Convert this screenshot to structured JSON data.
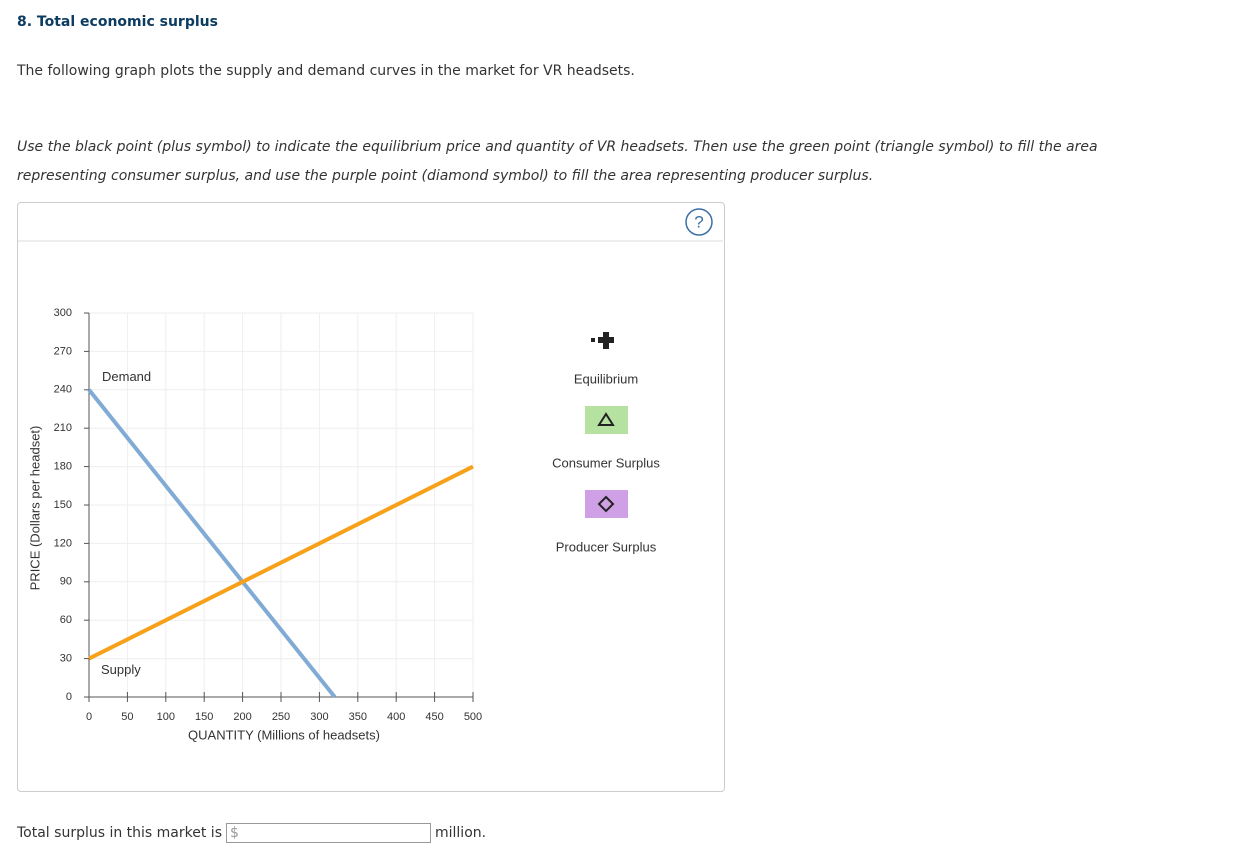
{
  "header": {
    "title": "8. Total economic surplus"
  },
  "intro": "The following graph plots the supply and demand curves in the market for VR headsets.",
  "instructions": "Use the black point (plus symbol) to indicate the equilibrium price and quantity of VR headsets. Then use the green point (triangle symbol) to fill the area representing consumer surplus, and use the purple point (diamond symbol) to fill the area representing producer surplus.",
  "chart_data": {
    "type": "line",
    "x_label": "QUANTITY (Millions of headsets)",
    "y_label": "PRICE (Dollars per headset)",
    "series": [
      {
        "name": "Demand",
        "color": "#80abd4",
        "x": [
          0,
          320
        ],
        "values": [
          240,
          0
        ]
      },
      {
        "name": "Supply",
        "color": "#f7a11a",
        "x": [
          0,
          500
        ],
        "values": [
          30,
          180
        ]
      }
    ],
    "xlim": [
      0,
      500
    ],
    "ylim": [
      0,
      300
    ],
    "xticks": [
      0,
      50,
      100,
      150,
      200,
      250,
      300,
      350,
      400,
      450,
      500
    ],
    "yticks": [
      0,
      30,
      60,
      90,
      120,
      150,
      180,
      210,
      240,
      270,
      300
    ],
    "grid": true
  },
  "tools": [
    {
      "label": "Equilibrium"
    },
    {
      "label": "Consumer Surplus"
    },
    {
      "label": "Producer Surplus"
    }
  ],
  "help": "?",
  "answer": {
    "prefix": "Total surplus in this market is",
    "currency": "$",
    "suffix": "million."
  }
}
